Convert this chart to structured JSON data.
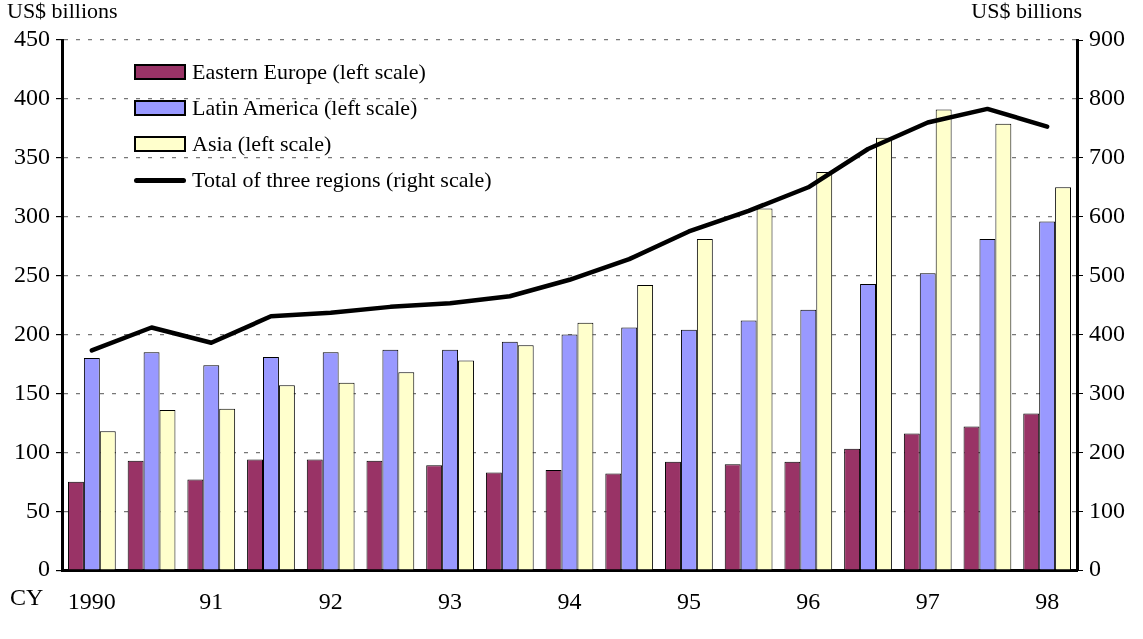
{
  "chart_data": {
    "type": "bar",
    "ylabel": "US$ billions",
    "y2label": "US$ billions",
    "xlabel": "CY",
    "categories": [
      "1990",
      null,
      "91",
      null,
      "92",
      null,
      "93",
      null,
      "94",
      null,
      "95",
      null,
      "96",
      null,
      "97",
      null,
      "98"
    ],
    "series": [
      {
        "name": "Eastern Europe (left scale)",
        "color": "#993366",
        "values": [
          75,
          93,
          77,
          94,
          94,
          93,
          89,
          83,
          85,
          82,
          92,
          90,
          92,
          103,
          116,
          122,
          133
        ]
      },
      {
        "name": "Latin America (left scale)",
        "color": "#9999ff",
        "values": [
          180,
          185,
          174,
          181,
          185,
          187,
          187,
          194,
          200,
          206,
          204,
          212,
          221,
          243,
          252,
          281,
          296
        ]
      },
      {
        "name": "Asia (left scale)",
        "color": "#ffffcc",
        "values": [
          118,
          136,
          137,
          157,
          159,
          168,
          178,
          191,
          210,
          242,
          281,
          307,
          338,
          367,
          391,
          379,
          325
        ]
      },
      {
        "name": "Total of three regions (right scale)",
        "type": "line",
        "axis": "y2",
        "color": "#000000",
        "values": [
          373,
          412,
          386,
          431,
          437,
          447,
          453,
          465,
          493,
          528,
          575,
          610,
          650,
          715,
          760,
          783,
          753
        ]
      }
    ],
    "ylim": [
      0,
      450
    ],
    "yticks": [
      0,
      50,
      100,
      150,
      200,
      250,
      300,
      350,
      400,
      450
    ],
    "y2lim": [
      0,
      900
    ],
    "y2ticks": [
      0,
      100,
      200,
      300,
      400,
      500,
      600,
      700,
      800,
      900
    ],
    "grid": "y",
    "legend": "top left",
    "marker": "none",
    "line_style": "solid"
  }
}
